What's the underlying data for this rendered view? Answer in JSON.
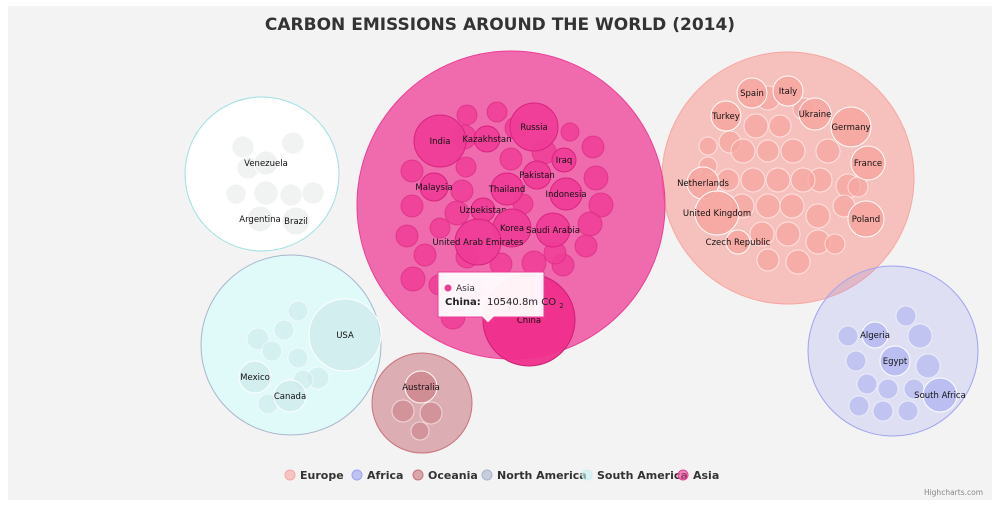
{
  "chart_data": {
    "type": "packedbubble",
    "title": "CARBON EMISSIONS AROUND THE WORLD (2014)",
    "unit": "m CO2",
    "series": [
      {
        "name": "Europe",
        "color": "#f7a6a0",
        "points": [
          {
            "name": "Spain",
            "value": 246.2
          },
          {
            "name": "Italy",
            "value": 320.4
          },
          {
            "name": "Turkey",
            "value": 345.4
          },
          {
            "name": "Ukraine",
            "value": 227.6
          },
          {
            "name": "Germany",
            "value": 719.0
          },
          {
            "name": "France",
            "value": 301.7
          },
          {
            "name": "Netherlands",
            "value": 167.4
          },
          {
            "name": "United Kingdom",
            "value": 415.9
          },
          {
            "name": "Poland",
            "value": 282.4
          },
          {
            "name": "Czech Republic",
            "value": 96.0
          }
        ]
      },
      {
        "name": "Africa",
        "color": "#9ea3f0",
        "points": [
          {
            "name": "Algeria",
            "value": 145.4
          },
          {
            "name": "Egypt",
            "value": 201.1
          },
          {
            "name": "South Africa",
            "value": 489.8
          }
        ]
      },
      {
        "name": "Oceania",
        "color": "#c8737c",
        "points": [
          {
            "name": "Australia",
            "value": 361.2
          }
        ]
      },
      {
        "name": "North America",
        "color": "#a9b5cc",
        "points": [
          {
            "name": "USA",
            "value": 5334.5
          },
          {
            "name": "Mexico",
            "value": 468.4
          },
          {
            "name": "Canada",
            "value": 555.4
          }
        ]
      },
      {
        "name": "South America",
        "color": "#c9f0f0",
        "points": [
          {
            "name": "Venezuela",
            "value": 185.2
          },
          {
            "name": "Argentina",
            "value": 204.4
          },
          {
            "name": "Brazil",
            "value": 501.1
          }
        ]
      },
      {
        "name": "Asia",
        "color": "#ee3d97",
        "points": [
          {
            "name": "China",
            "value": 10540.8
          },
          {
            "name": "India",
            "value": 2341.9
          },
          {
            "name": "Russia",
            "value": 1766.4
          },
          {
            "name": "Kazakhstan",
            "value": 248.3
          },
          {
            "name": "Iraq",
            "value": 168.2
          },
          {
            "name": "Pakistan",
            "value": 166.3
          },
          {
            "name": "Malaysia",
            "value": 242.8
          },
          {
            "name": "Thailand",
            "value": 316.9
          },
          {
            "name": "Indonesia",
            "value": 464.2
          },
          {
            "name": "Uzbekistan",
            "value": 98.8
          },
          {
            "name": "Korea",
            "value": 587.7
          },
          {
            "name": "Saudi Arabia",
            "value": 601.0
          },
          {
            "name": "United Arab Emirates",
            "value": 211.4
          }
        ]
      }
    ],
    "legend": [
      "Europe",
      "Africa",
      "Oceania",
      "North America",
      "South America",
      "Asia"
    ],
    "legend_position": "bottom-center",
    "tooltip": {
      "series": "Asia",
      "point": "China",
      "label": "China:",
      "value_text": "10540.8m CO",
      "sub": "2"
    },
    "credits": "Highcharts.com"
  }
}
